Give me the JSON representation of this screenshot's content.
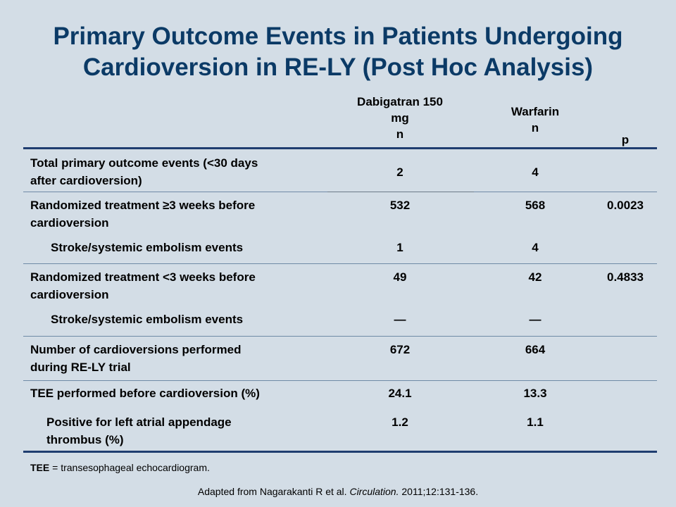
{
  "title": {
    "line1": "Primary Outcome Events in Patients Undergoing",
    "line2": "Cardioversion in RE-LY (Post Hoc Analysis)"
  },
  "headers": {
    "dabigatran": [
      "Dabigatran 150",
      "mg",
      "n"
    ],
    "warfarin": [
      "Warfarin",
      "n"
    ],
    "p": "p"
  },
  "rows": [
    {
      "label": [
        "Total primary outcome events (<30 days",
        "after cardioversion)"
      ],
      "dabigatran": "2",
      "warfarin": "4",
      "p": ""
    },
    {
      "label": [
        "Randomized treatment ≥3 weeks before",
        "cardioversion"
      ],
      "dabigatran": "532",
      "warfarin": "568",
      "p": "0.0023"
    },
    {
      "label": [
        "Stroke/systemic embolism events"
      ],
      "dabigatran": "1",
      "warfarin": "4",
      "p": ""
    },
    {
      "label": [
        "Randomized treatment <3 weeks before",
        "cardioversion"
      ],
      "dabigatran": "49",
      "warfarin": "42",
      "p": "0.4833"
    },
    {
      "label": [
        "Stroke/systemic embolism events"
      ],
      "dabigatran": "—",
      "warfarin": "—",
      "p": ""
    },
    {
      "label": [
        "Number of cardioversions performed",
        "during RE-LY trial"
      ],
      "dabigatran": "672",
      "warfarin": "664",
      "p": ""
    },
    {
      "label": [
        "TEE performed before cardioversion (%)"
      ],
      "dabigatran": "24.1",
      "warfarin": "13.3",
      "p": ""
    },
    {
      "label": [
        "Positive for left atrial appendage",
        "thrombus (%)"
      ],
      "dabigatran": "1.2",
      "warfarin": "1.1",
      "p": ""
    }
  ],
  "footnote": {
    "abbr": "TEE",
    "rest": " = transesophageal  echocardiogram."
  },
  "source": {
    "before": "Adapted from Nagarakanti R et al. ",
    "journal": "Circulation.",
    "after": " 2011;12:131-136."
  }
}
